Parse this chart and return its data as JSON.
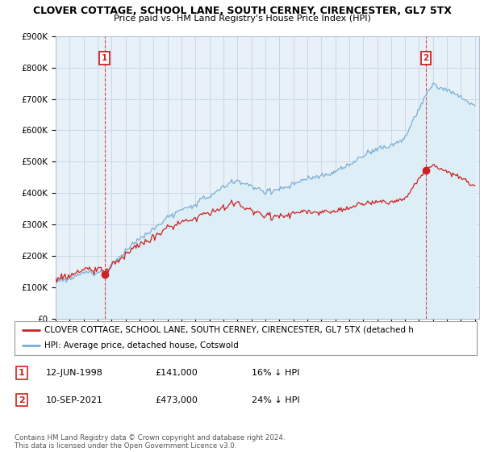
{
  "title": "CLOVER COTTAGE, SCHOOL LANE, SOUTH CERNEY, CIRENCESTER, GL7 5TX",
  "subtitle": "Price paid vs. HM Land Registry's House Price Index (HPI)",
  "ylim": [
    0,
    900000
  ],
  "yticks": [
    0,
    100000,
    200000,
    300000,
    400000,
    500000,
    600000,
    700000,
    800000,
    900000
  ],
  "ytick_labels": [
    "£0",
    "£100K",
    "£200K",
    "£300K",
    "£400K",
    "£500K",
    "£600K",
    "£700K",
    "£800K",
    "£900K"
  ],
  "hpi_color": "#7ab0d4",
  "hpi_fill_color": "#ddeef7",
  "price_color": "#cc2222",
  "legend_property": "CLOVER COTTAGE, SCHOOL LANE, SOUTH CERNEY, CIRENCESTER, GL7 5TX (detached h",
  "legend_hpi": "HPI: Average price, detached house, Cotswold",
  "footnote": "Contains HM Land Registry data © Crown copyright and database right 2024.\nThis data is licensed under the Open Government Licence v3.0.",
  "table_rows": [
    {
      "num": "1",
      "date": "12-JUN-1998",
      "price": "£141,000",
      "hpi": "16% ↓ HPI"
    },
    {
      "num": "2",
      "date": "10-SEP-2021",
      "price": "£473,000",
      "hpi": "24% ↓ HPI"
    }
  ],
  "background_color": "#ffffff",
  "grid_color": "#c8d8e8",
  "chart_bg": "#e8f0f8",
  "m1_idx": 42,
  "m1_price": 141000,
  "m2_idx": 318,
  "m2_price": 473000
}
